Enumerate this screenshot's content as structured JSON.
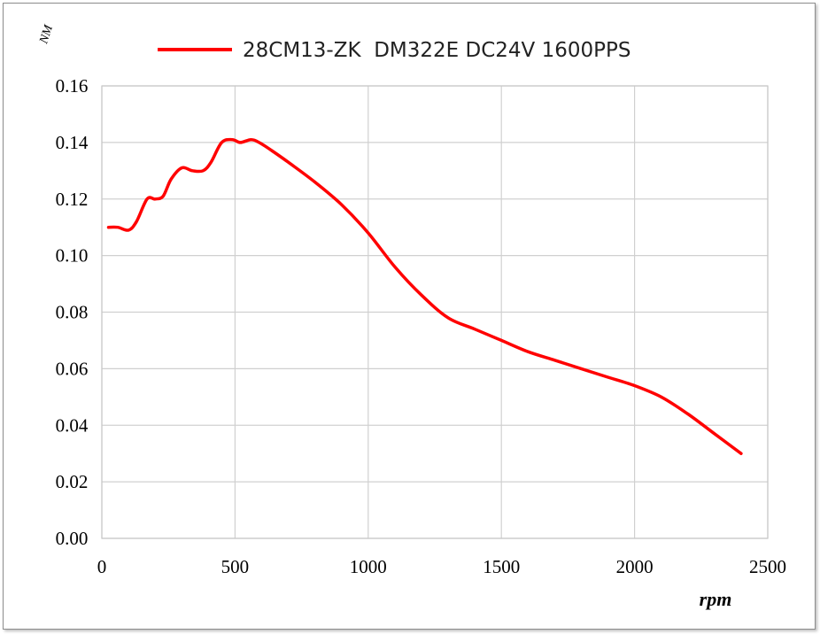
{
  "chart_data": {
    "type": "line",
    "title": "",
    "xlabel": "rpm",
    "ylabel": "NM",
    "xlim": [
      0,
      2500
    ],
    "ylim": [
      0,
      0.16
    ],
    "x_ticks": [
      "0",
      "500",
      "1000",
      "1500",
      "2000",
      "2500"
    ],
    "y_ticks": [
      "0.00",
      "0.02",
      "0.04",
      "0.06",
      "0.08",
      "0.10",
      "0.12",
      "0.14",
      "0.16"
    ],
    "grid": true,
    "legend_position": "top",
    "series": [
      {
        "name": "28CM13-ZK  DM322E DC24V 1600PPS",
        "color": "#ff0000",
        "x": [
          25,
          60,
          100,
          130,
          170,
          200,
          230,
          260,
          300,
          340,
          380,
          410,
          450,
          490,
          520,
          560,
          590,
          640,
          700,
          800,
          900,
          1000,
          1100,
          1200,
          1300,
          1400,
          1500,
          1600,
          1700,
          1800,
          1900,
          2000,
          2100,
          2200,
          2300,
          2400
        ],
        "y": [
          0.11,
          0.11,
          0.109,
          0.112,
          0.12,
          0.12,
          0.121,
          0.127,
          0.131,
          0.13,
          0.13,
          0.133,
          0.14,
          0.141,
          0.14,
          0.141,
          0.14,
          0.137,
          0.133,
          0.126,
          0.118,
          0.108,
          0.096,
          0.086,
          0.078,
          0.074,
          0.07,
          0.066,
          0.063,
          0.06,
          0.057,
          0.054,
          0.05,
          0.044,
          0.037,
          0.03
        ]
      }
    ]
  }
}
